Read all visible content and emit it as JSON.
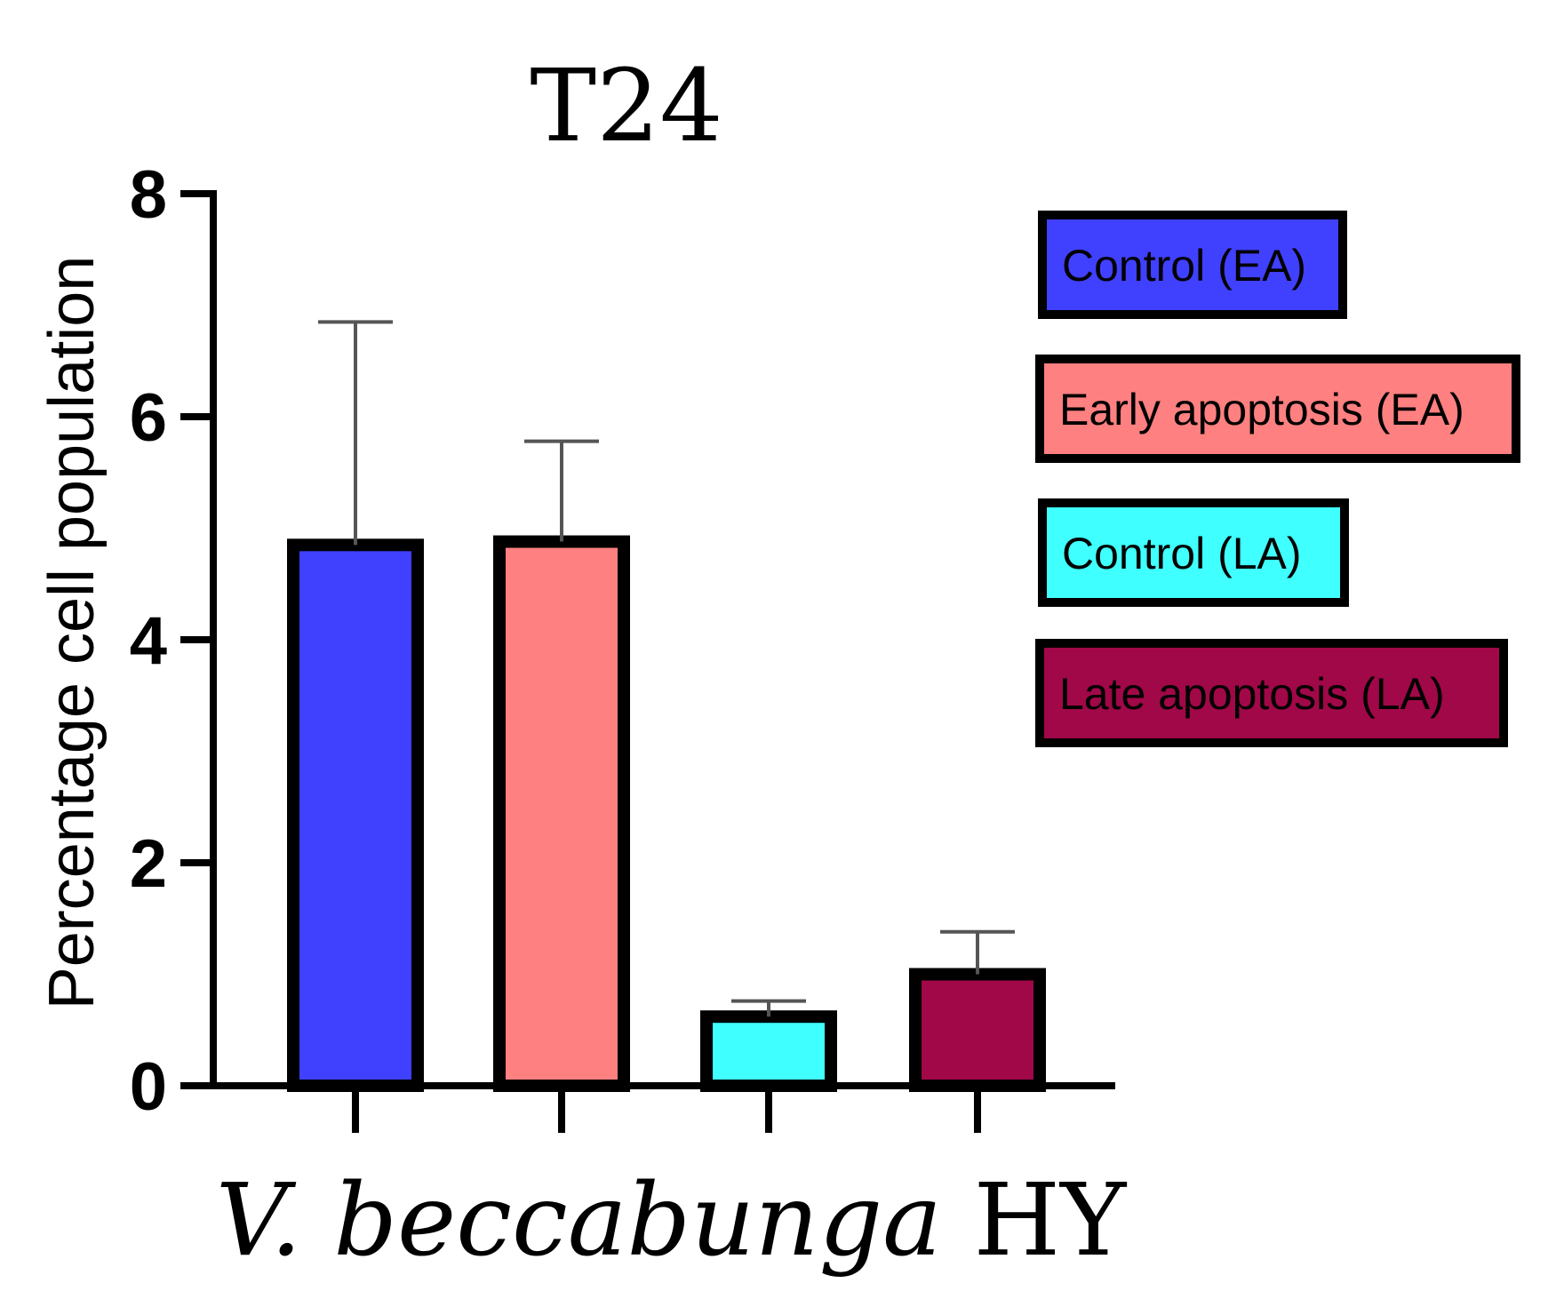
{
  "chart_data": {
    "type": "bar",
    "title": "T24",
    "xlabel": {
      "italic": "V. beccabunga",
      "rest": " HY"
    },
    "ylabel": "Percentage cell population",
    "ylim": [
      0,
      8
    ],
    "yticks": [
      "0",
      "2",
      "4",
      "6",
      "8"
    ],
    "categories": [
      "Control (EA)",
      "Early apoptosis (EA)",
      "Control (LA)",
      "Late apoptosis (LA)"
    ],
    "values": [
      4.85,
      4.88,
      0.62,
      1.0
    ],
    "errors": [
      2.0,
      0.9,
      0.14,
      0.38
    ],
    "colors": [
      "#4040ff",
      "#ff8080",
      "#40ffff",
      "#a00848"
    ],
    "legend": {
      "position": "right",
      "entries": [
        {
          "label": "Control (EA)",
          "color": "#4040ff"
        },
        {
          "label": "Early apoptosis (EA)",
          "color": "#ff8080"
        },
        {
          "label": "Control (LA)",
          "color": "#40ffff"
        },
        {
          "label": "Late apoptosis (LA)",
          "color": "#a00848"
        }
      ]
    }
  }
}
